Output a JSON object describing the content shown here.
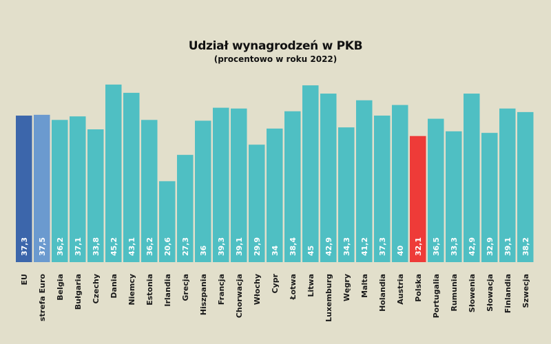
{
  "chart_data": {
    "type": "bar",
    "title": "Udział wynagrodzeń w PKB",
    "subtitle": "(procentowo w roku 2022)",
    "xlabel": "",
    "ylabel": "",
    "ylim": [
      0,
      50
    ],
    "grid": false,
    "categories": [
      "EU",
      "strefa Euro",
      "Belgia",
      "Bułgaria",
      "Czechy",
      "Dania",
      "Niemcy",
      "Estonia",
      "Irlandia",
      "Grecja",
      "Hiszpania",
      "Francja",
      "Chorwacja",
      "Włochy",
      "Cypr",
      "Łotwa",
      "Litwa",
      "Luxemburg",
      "Węgry",
      "Malta",
      "Holandia",
      "Austria",
      "Polska",
      "Portugalia",
      "Rumunia",
      "Słowenia",
      "Słowacja",
      "Finlandia",
      "Szwecja"
    ],
    "values": [
      37.3,
      37.5,
      36.2,
      37.1,
      33.8,
      45.2,
      43.1,
      36.2,
      20.6,
      27.3,
      36,
      39.3,
      39.1,
      29.9,
      34,
      38.4,
      45,
      42.9,
      34.3,
      41.2,
      37.3,
      40,
      32.1,
      36.5,
      33.3,
      42.9,
      32.9,
      39.1,
      38.2
    ],
    "value_labels": [
      "37,3",
      "37,5",
      "36,2",
      "37,1",
      "33,8",
      "45,2",
      "43,1",
      "36,2",
      "20,6",
      "27,3",
      "36",
      "39,3",
      "39,1",
      "29,9",
      "34",
      "38,4",
      "45",
      "42,9",
      "34,3",
      "41,2",
      "37,3",
      "40",
      "32,1",
      "36,5",
      "33,3",
      "42,9",
      "32,9",
      "39,1",
      "38,2"
    ],
    "colors": {
      "default": "#4fbfc3",
      "EU": "#3c66ab",
      "strefa Euro": "#6b9acf",
      "Polska": "#ee3b38"
    }
  }
}
